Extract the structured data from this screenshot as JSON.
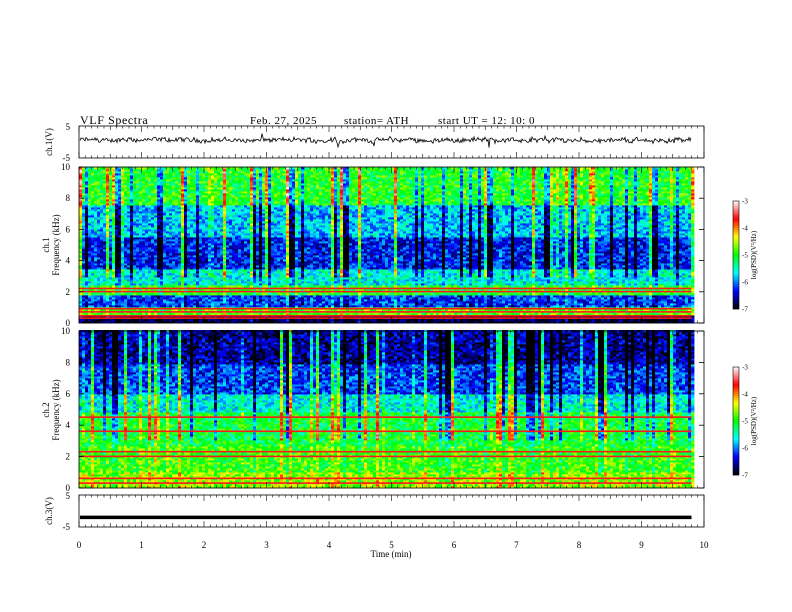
{
  "header": {
    "title": "VLF  Spectra",
    "date": "Feb. 27, 2025",
    "station": "station= ATH",
    "start": "start  UT  =   12: 10: 0"
  },
  "chart_data": [
    {
      "type": "line",
      "panel": "ch1-waveform",
      "ylabel": "ch.1(V)",
      "ylim": [
        -5,
        5
      ],
      "yticks": [
        "5",
        "-5"
      ],
      "x_range_min": [
        0,
        9.8
      ],
      "waveform": "noisy signal centred slightly above 0 V, amplitude about ±1.5 V",
      "color": "#000000"
    },
    {
      "type": "heatmap",
      "panel": "ch1-spectrogram",
      "ylabel": "ch.1\nFrequency (kHz)",
      "ylim": [
        0,
        10
      ],
      "yticks": [
        "0",
        "2",
        "4",
        "6",
        "8",
        "10"
      ],
      "x_range_min": [
        0,
        9.8
      ],
      "colorbar": {
        "label": "log(PSD)(V²/Hz)",
        "range": [
          -7,
          -3
        ],
        "ticks": [
          "-3",
          "-4",
          "-5",
          "-6",
          "-7"
        ],
        "colors": [
          "#000000",
          "#0000ff",
          "#00ffff",
          "#00ff00",
          "#ffff00",
          "#ff0000",
          "#ffffff"
        ]
      },
      "bands": [
        {
          "f": [
            0.0,
            0.5
          ],
          "level": -6.9
        },
        {
          "f": [
            0.5,
            1.0
          ],
          "level": -4.8
        },
        {
          "f": [
            1.0,
            1.8
          ],
          "level": -6.2
        },
        {
          "f": [
            1.8,
            2.4
          ],
          "level": -5.0
        },
        {
          "f": [
            2.4,
            3.4
          ],
          "level": -5.6
        },
        {
          "f": [
            3.4,
            5.5
          ],
          "level": -6.3
        },
        {
          "f": [
            5.5,
            7.6
          ],
          "level": -5.8
        },
        {
          "f": [
            7.6,
            10.0
          ],
          "level": -5.0
        }
      ],
      "lines_khz": [
        0.3,
        0.45,
        0.7,
        0.9,
        2.0,
        2.2
      ]
    },
    {
      "type": "heatmap",
      "panel": "ch2-spectrogram",
      "ylabel": "ch.2\nFrequency (kHz)",
      "ylim": [
        0,
        10
      ],
      "yticks": [
        "0",
        "2",
        "4",
        "6",
        "8",
        "10"
      ],
      "x_range_min": [
        0,
        9.8
      ],
      "colorbar": {
        "label": "log(PSD)(V²/Hz)",
        "range": [
          -7,
          -3
        ],
        "ticks": [
          "-3",
          "-4",
          "-5",
          "-6",
          "-7"
        ],
        "colors": [
          "#000000",
          "#0000ff",
          "#00ffff",
          "#00ff00",
          "#ffff00",
          "#ff0000",
          "#ffffff"
        ]
      },
      "bands": [
        {
          "f": [
            0.0,
            1.0
          ],
          "level": -4.6
        },
        {
          "f": [
            1.0,
            2.6
          ],
          "level": -4.9
        },
        {
          "f": [
            2.6,
            4.8
          ],
          "level": -5.1
        },
        {
          "f": [
            4.8,
            6.0
          ],
          "level": -5.6
        },
        {
          "f": [
            6.0,
            7.8
          ],
          "level": -6.2
        },
        {
          "f": [
            7.8,
            10.0
          ],
          "level": -6.6
        }
      ],
      "lines_khz": [
        0.3,
        0.6,
        2.0,
        2.3,
        3.6,
        4.5
      ]
    },
    {
      "type": "line",
      "panel": "ch3-waveform",
      "ylabel": "ch.3(V)",
      "ylim": [
        -5,
        5
      ],
      "yticks": [
        "5",
        "-5"
      ],
      "x_range_min": [
        0,
        9.8
      ],
      "waveform": "flat line at about -2 V",
      "color": "#000000"
    }
  ],
  "xaxis": {
    "label": "Time  (min)",
    "range": [
      0,
      10
    ],
    "ticks": [
      "0",
      "1",
      "2",
      "3",
      "4",
      "5",
      "6",
      "7",
      "8",
      "9",
      "10"
    ]
  }
}
